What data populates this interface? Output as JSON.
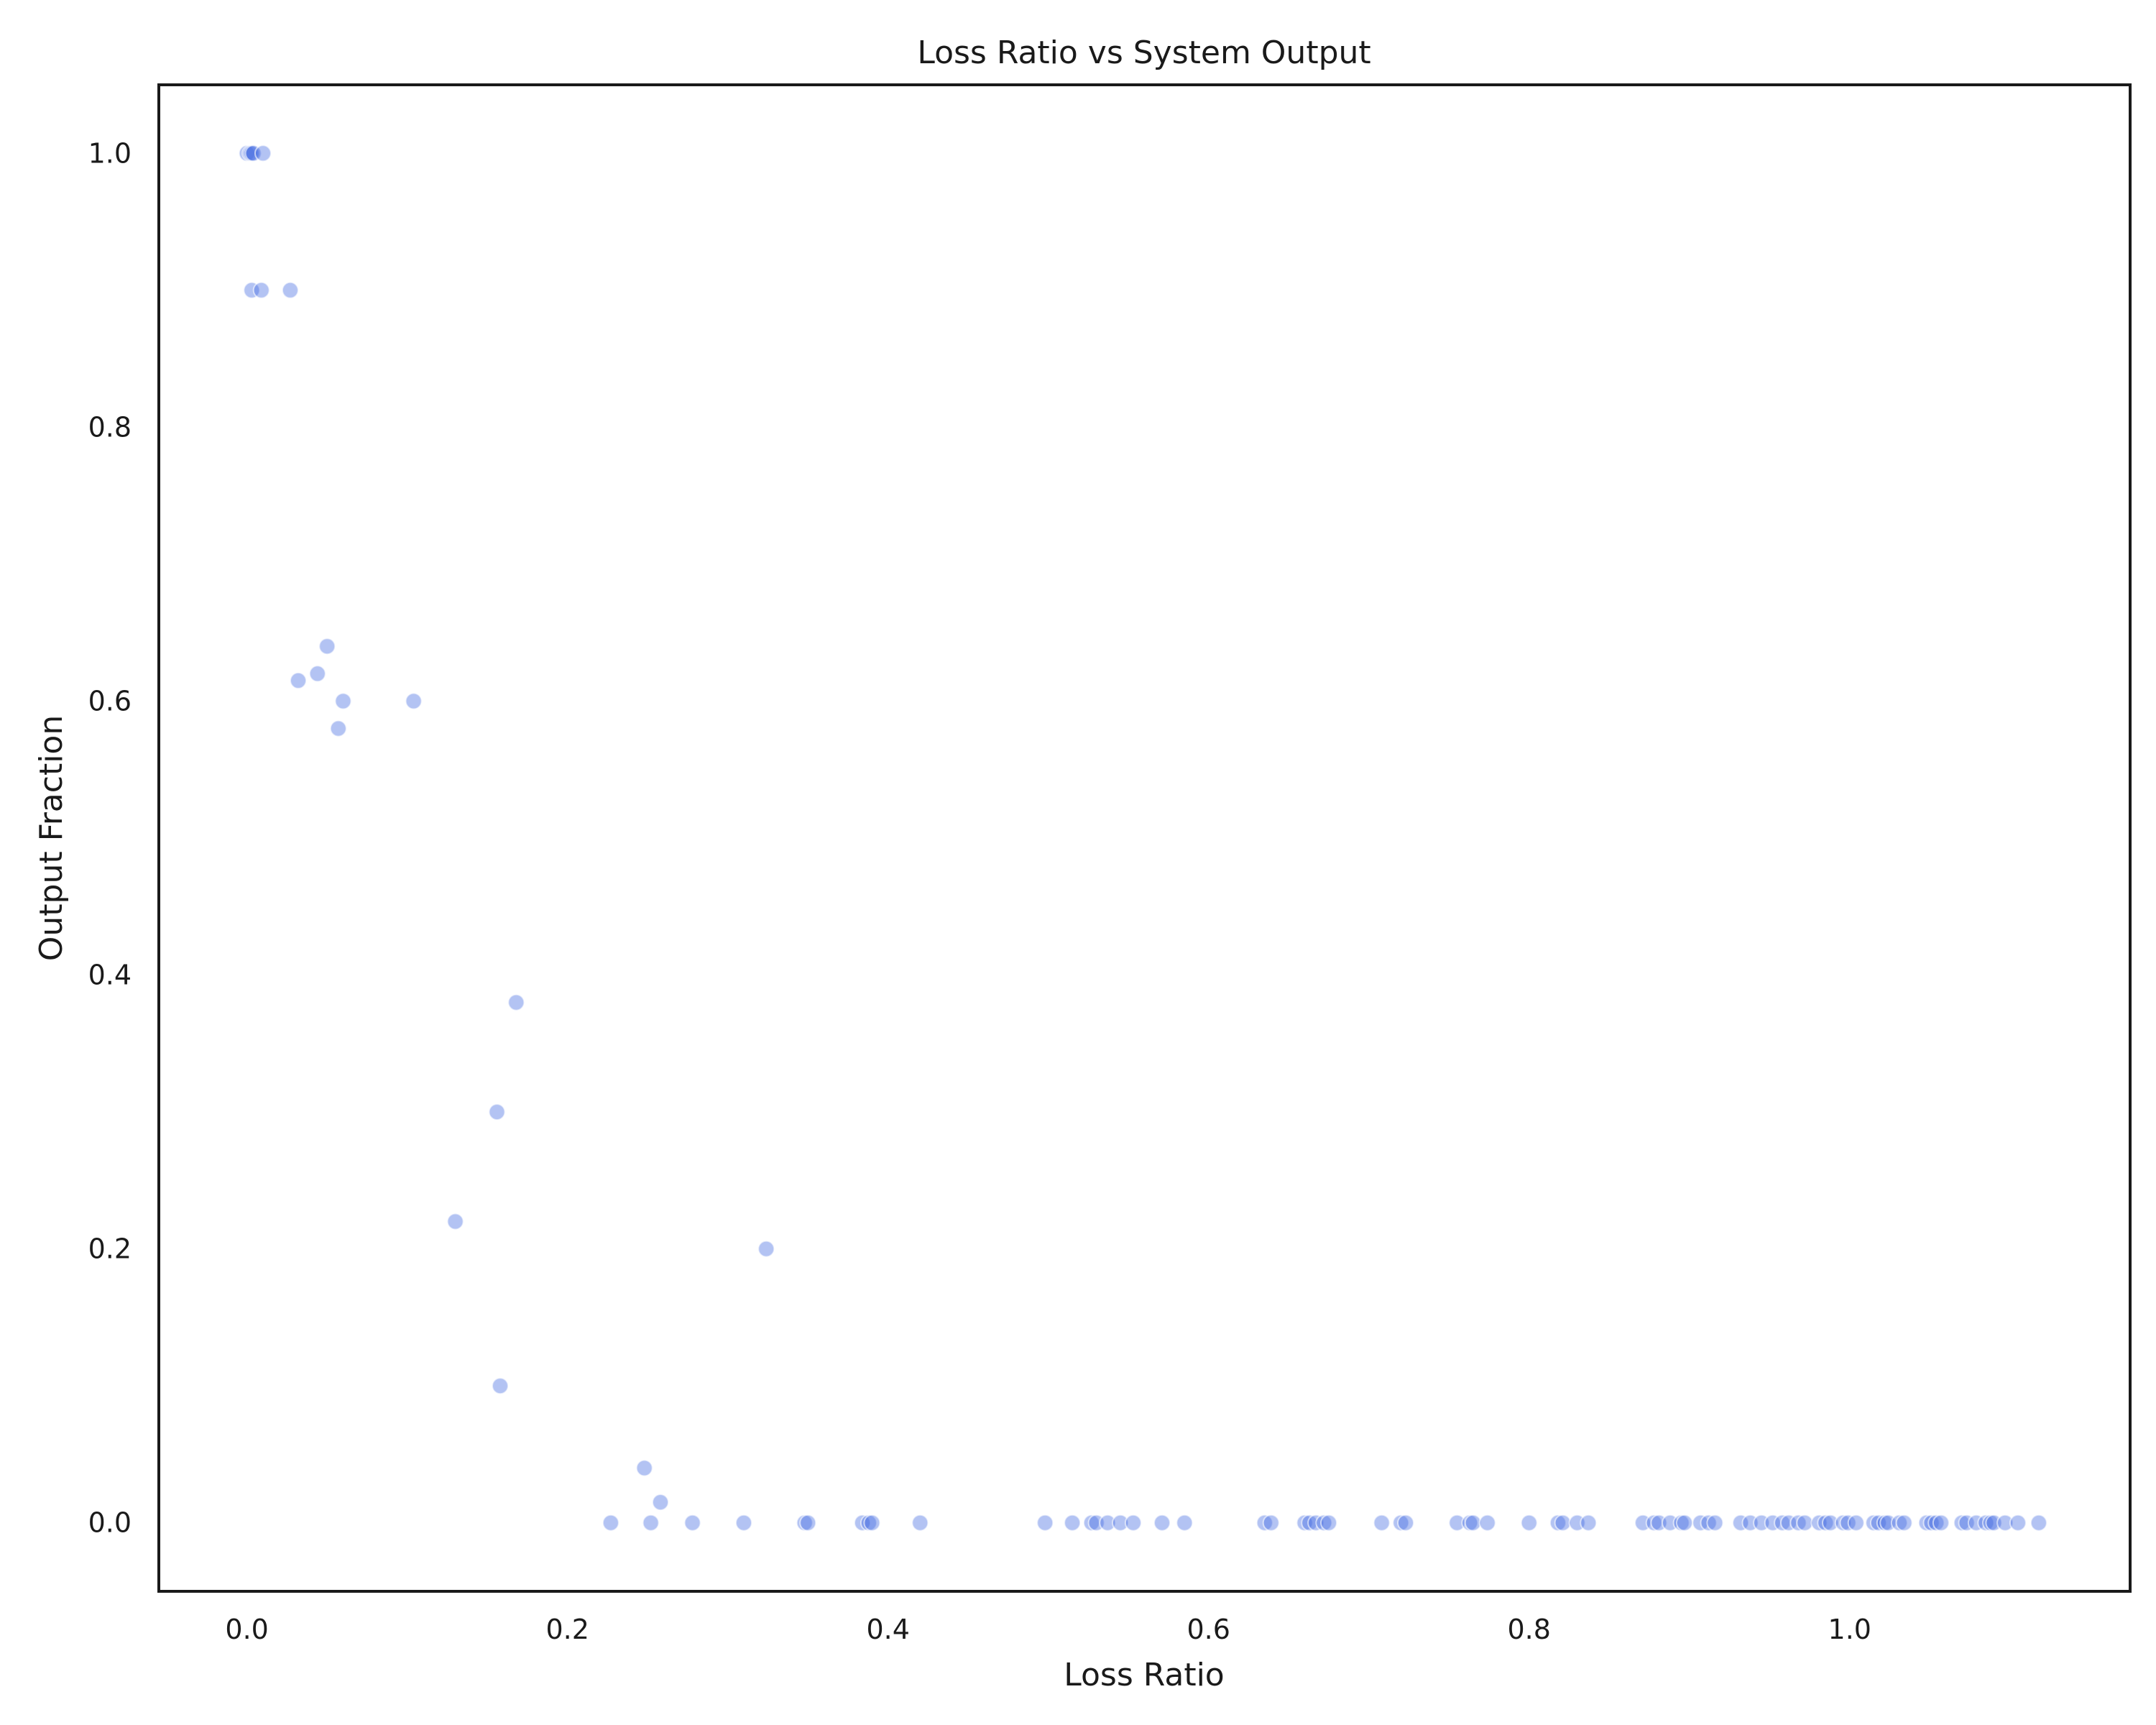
{
  "chart_data": {
    "type": "scatter",
    "title": "Loss Ratio vs System Output",
    "xlabel": "Loss Ratio",
    "ylabel": "Output Fraction",
    "xlim": [
      -0.055,
      1.175
    ],
    "ylim": [
      -0.05,
      1.05
    ],
    "xticks": [
      0.0,
      0.2,
      0.4,
      0.6,
      0.8,
      1.0
    ],
    "xtick_labels": [
      "0.0",
      "0.2",
      "0.4",
      "0.6",
      "0.8",
      "1.0"
    ],
    "yticks": [
      0.0,
      0.2,
      0.4,
      0.6,
      0.8,
      1.0
    ],
    "ytick_labels": [
      "0.0",
      "0.2",
      "0.4",
      "0.6",
      "0.8",
      "1.0"
    ],
    "grid": false,
    "marker_color": "#4169e1",
    "points": [
      {
        "x": 0.0,
        "y": 1.0
      },
      {
        "x": 0.002,
        "y": 1.0
      },
      {
        "x": 0.003,
        "y": 1.0
      },
      {
        "x": 0.004,
        "y": 1.0
      },
      {
        "x": 0.01,
        "y": 1.0
      },
      {
        "x": 0.003,
        "y": 0.9
      },
      {
        "x": 0.009,
        "y": 0.9
      },
      {
        "x": 0.027,
        "y": 0.9
      },
      {
        "x": 0.032,
        "y": 0.615
      },
      {
        "x": 0.044,
        "y": 0.62
      },
      {
        "x": 0.05,
        "y": 0.64
      },
      {
        "x": 0.057,
        "y": 0.58
      },
      {
        "x": 0.06,
        "y": 0.6
      },
      {
        "x": 0.104,
        "y": 0.6
      },
      {
        "x": 0.168,
        "y": 0.38
      },
      {
        "x": 0.156,
        "y": 0.3
      },
      {
        "x": 0.13,
        "y": 0.22
      },
      {
        "x": 0.324,
        "y": 0.2
      },
      {
        "x": 0.158,
        "y": 0.1
      },
      {
        "x": 0.248,
        "y": 0.04
      },
      {
        "x": 0.258,
        "y": 0.015
      },
      {
        "x": 0.227,
        "y": 0.0
      },
      {
        "x": 0.252,
        "y": 0.0
      },
      {
        "x": 0.278,
        "y": 0.0
      },
      {
        "x": 0.31,
        "y": 0.0
      },
      {
        "x": 0.348,
        "y": 0.0
      },
      {
        "x": 0.35,
        "y": 0.0
      },
      {
        "x": 0.384,
        "y": 0.0
      },
      {
        "x": 0.388,
        "y": 0.0
      },
      {
        "x": 0.39,
        "y": 0.0
      },
      {
        "x": 0.42,
        "y": 0.0
      },
      {
        "x": 0.498,
        "y": 0.0
      },
      {
        "x": 0.515,
        "y": 0.0
      },
      {
        "x": 0.527,
        "y": 0.0
      },
      {
        "x": 0.53,
        "y": 0.0
      },
      {
        "x": 0.537,
        "y": 0.0
      },
      {
        "x": 0.545,
        "y": 0.0
      },
      {
        "x": 0.553,
        "y": 0.0
      },
      {
        "x": 0.571,
        "y": 0.0
      },
      {
        "x": 0.585,
        "y": 0.0
      },
      {
        "x": 0.635,
        "y": 0.0
      },
      {
        "x": 0.639,
        "y": 0.0
      },
      {
        "x": 0.66,
        "y": 0.0
      },
      {
        "x": 0.663,
        "y": 0.0
      },
      {
        "x": 0.667,
        "y": 0.0
      },
      {
        "x": 0.672,
        "y": 0.0
      },
      {
        "x": 0.675,
        "y": 0.0
      },
      {
        "x": 0.708,
        "y": 0.0
      },
      {
        "x": 0.72,
        "y": 0.0
      },
      {
        "x": 0.723,
        "y": 0.0
      },
      {
        "x": 0.755,
        "y": 0.0
      },
      {
        "x": 0.763,
        "y": 0.0
      },
      {
        "x": 0.765,
        "y": 0.0
      },
      {
        "x": 0.774,
        "y": 0.0
      },
      {
        "x": 0.8,
        "y": 0.0
      },
      {
        "x": 0.818,
        "y": 0.0
      },
      {
        "x": 0.821,
        "y": 0.0
      },
      {
        "x": 0.83,
        "y": 0.0
      },
      {
        "x": 0.837,
        "y": 0.0
      },
      {
        "x": 0.871,
        "y": 0.0
      },
      {
        "x": 0.878,
        "y": 0.0
      },
      {
        "x": 0.881,
        "y": 0.0
      },
      {
        "x": 0.888,
        "y": 0.0
      },
      {
        "x": 0.895,
        "y": 0.0
      },
      {
        "x": 0.897,
        "y": 0.0
      },
      {
        "x": 0.907,
        "y": 0.0
      },
      {
        "x": 0.912,
        "y": 0.0
      },
      {
        "x": 0.916,
        "y": 0.0
      },
      {
        "x": 0.932,
        "y": 0.0
      },
      {
        "x": 0.938,
        "y": 0.0
      },
      {
        "x": 0.945,
        "y": 0.0
      },
      {
        "x": 0.952,
        "y": 0.0
      },
      {
        "x": 0.958,
        "y": 0.0
      },
      {
        "x": 0.962,
        "y": 0.0
      },
      {
        "x": 0.968,
        "y": 0.0
      },
      {
        "x": 0.972,
        "y": 0.0
      },
      {
        "x": 0.981,
        "y": 0.0
      },
      {
        "x": 0.985,
        "y": 0.0
      },
      {
        "x": 0.988,
        "y": 0.0
      },
      {
        "x": 0.996,
        "y": 0.0
      },
      {
        "x": 0.999,
        "y": 0.0
      },
      {
        "x": 1.004,
        "y": 0.0
      },
      {
        "x": 1.015,
        "y": 0.0
      },
      {
        "x": 1.018,
        "y": 0.0
      },
      {
        "x": 1.022,
        "y": 0.0
      },
      {
        "x": 1.024,
        "y": 0.0
      },
      {
        "x": 1.031,
        "y": 0.0
      },
      {
        "x": 1.034,
        "y": 0.0
      },
      {
        "x": 1.048,
        "y": 0.0
      },
      {
        "x": 1.051,
        "y": 0.0
      },
      {
        "x": 1.054,
        "y": 0.0
      },
      {
        "x": 1.057,
        "y": 0.0
      },
      {
        "x": 1.07,
        "y": 0.0
      },
      {
        "x": 1.073,
        "y": 0.0
      },
      {
        "x": 1.079,
        "y": 0.0
      },
      {
        "x": 1.085,
        "y": 0.0
      },
      {
        "x": 1.088,
        "y": 0.0
      },
      {
        "x": 1.09,
        "y": 0.0
      },
      {
        "x": 1.097,
        "y": 0.0
      },
      {
        "x": 1.105,
        "y": 0.0
      },
      {
        "x": 1.118,
        "y": 0.0
      }
    ]
  }
}
